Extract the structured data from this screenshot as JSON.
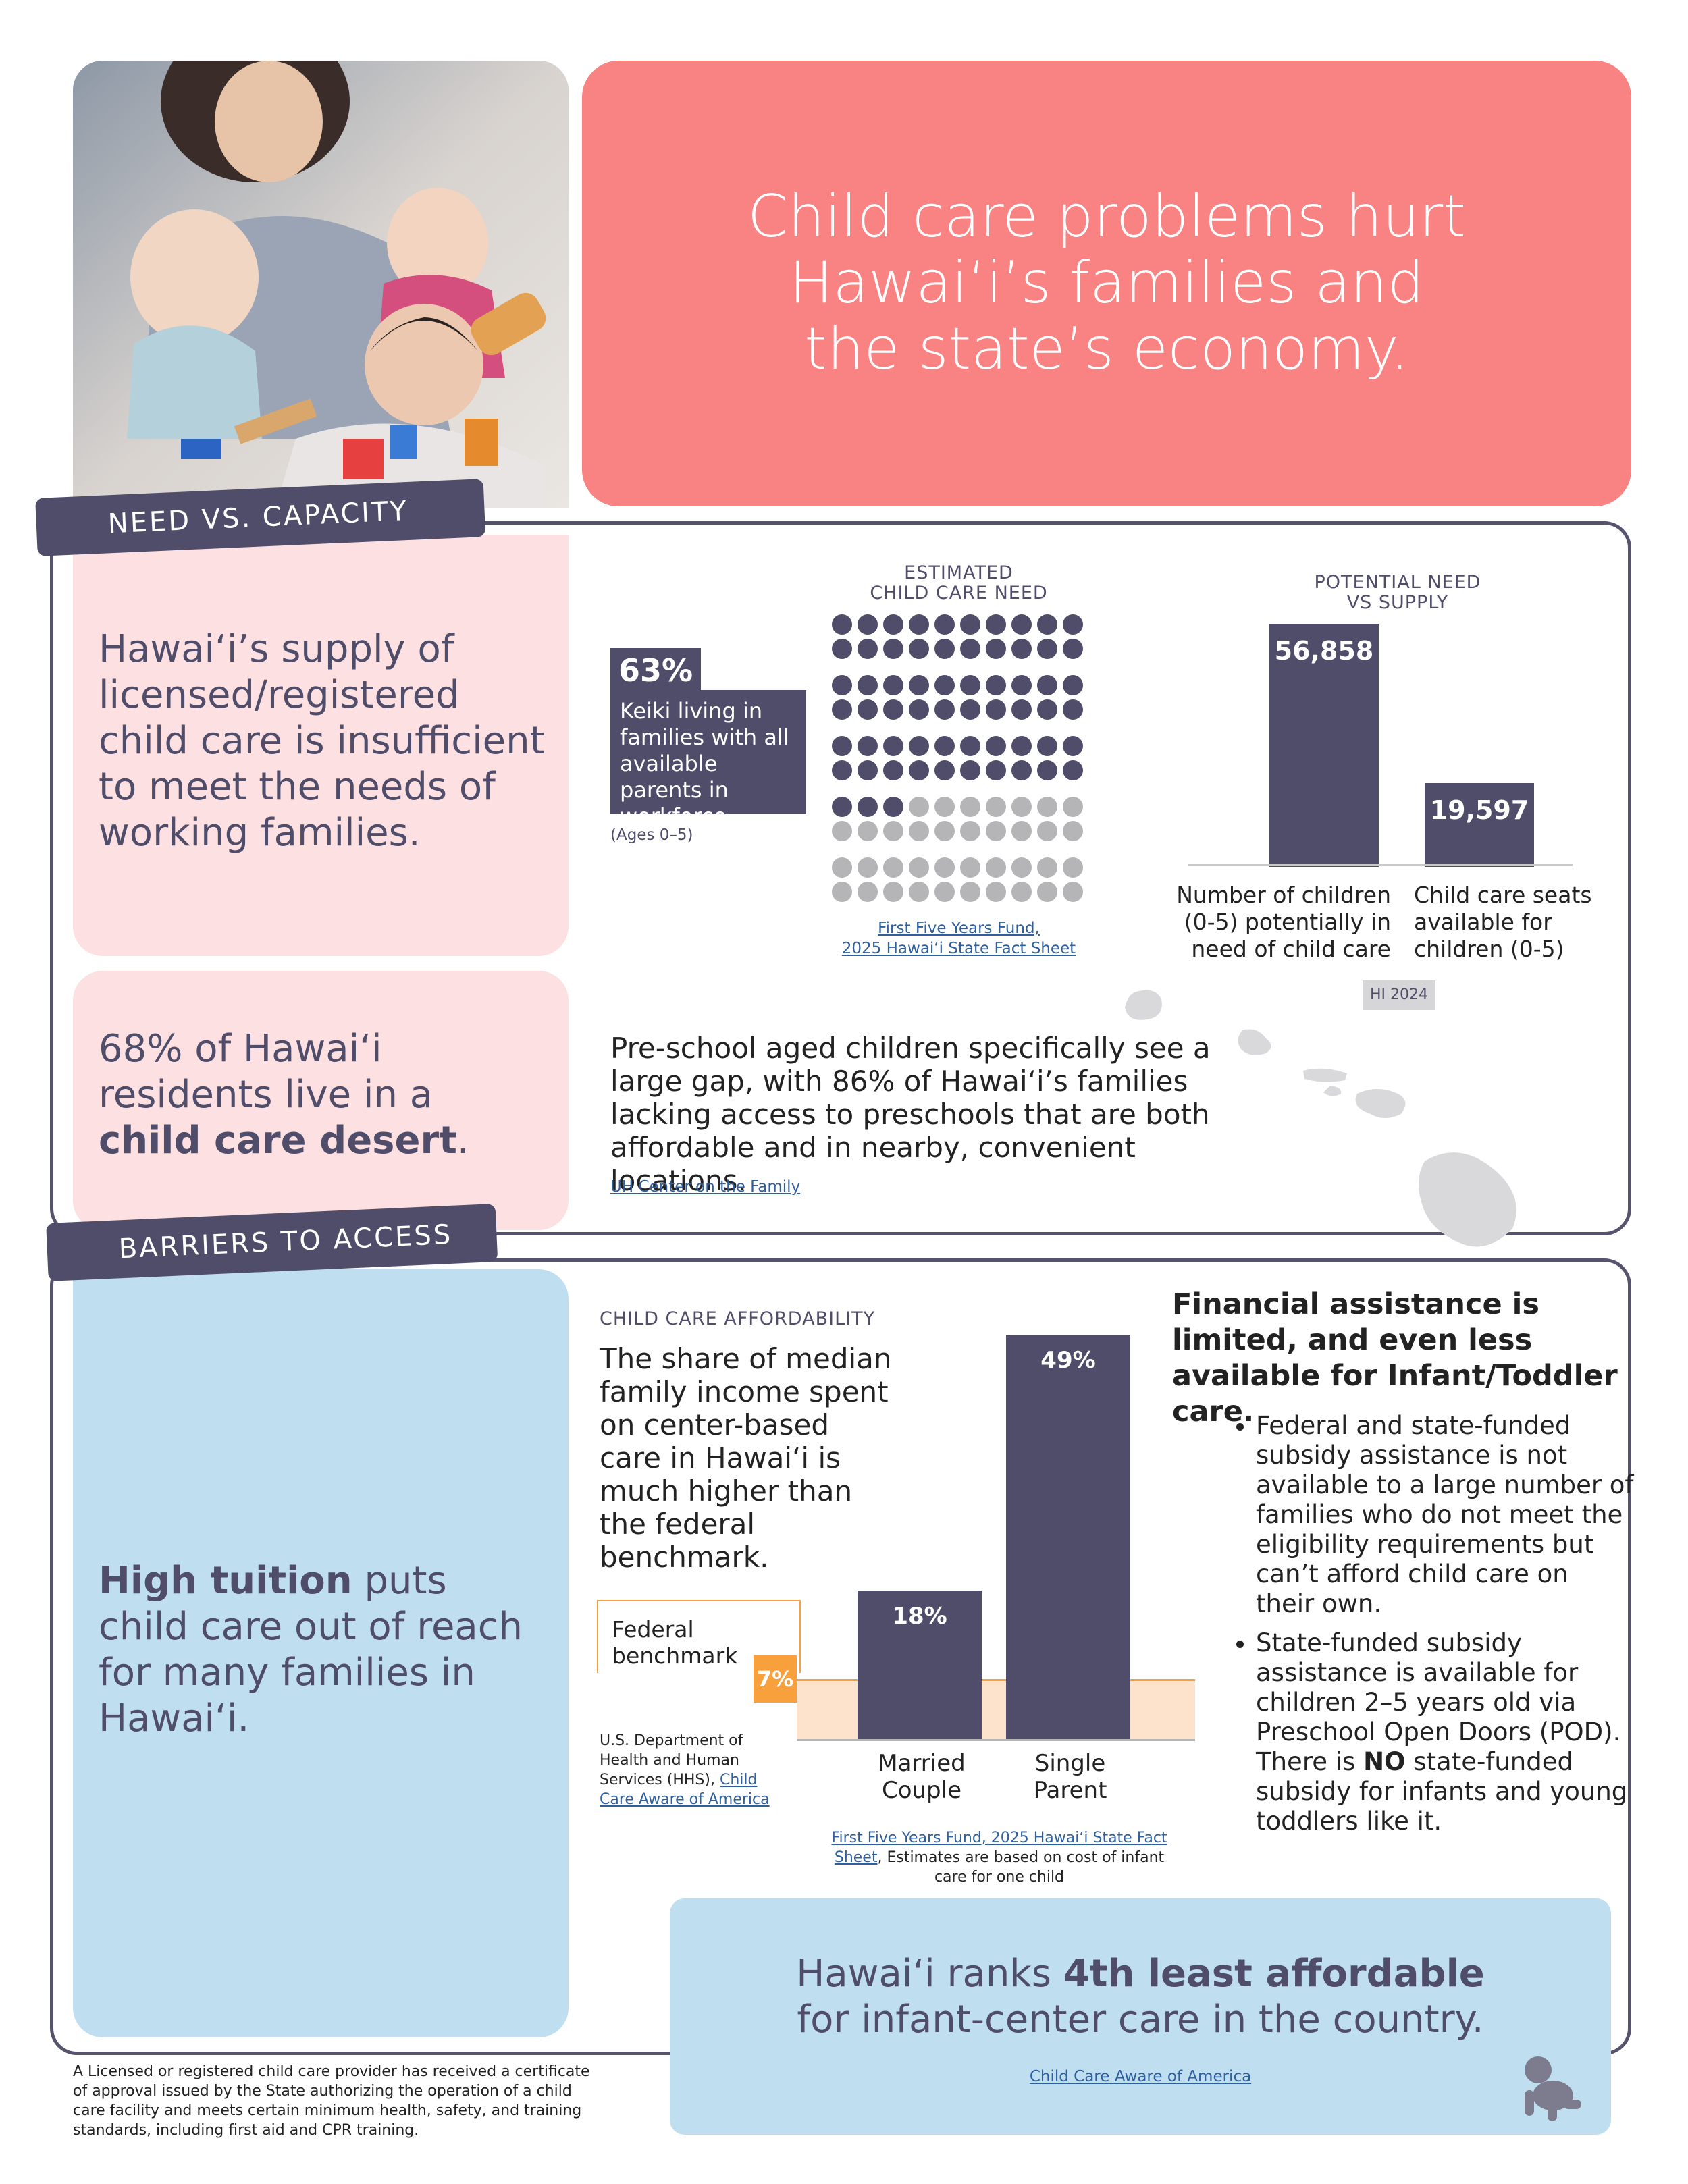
{
  "header": {
    "title_lines": [
      "Child care problems hurt",
      "Hawaiʻi’s families and",
      "the state’s economy."
    ]
  },
  "need": {
    "tab_label": "NEED VS. CAPACITY",
    "supply_statement": "Hawaiʻi’s supply of licensed/registered child care is insufficient to meet the needs of working families.",
    "stat_pct": "63%",
    "stat_desc": "Keiki living in families with all available parents in workforce",
    "stat_ages": "(Ages 0–5)",
    "dots_title_line1": "ESTIMATED",
    "dots_title_line2": "CHILD CARE NEED",
    "dots_filled": 63,
    "dots_total": 100,
    "dots_source_line1": "First Five Years Fund,",
    "dots_source_line2": "2025 Hawaiʻi State Fact Sheet",
    "supply_title_line1": "POTENTIAL NEED",
    "supply_title_line2": "VS SUPPLY",
    "year_badge": "HI 2024",
    "desert_pre": "68% of Hawaiʻi residents live in a",
    "desert_bold": "child care desert",
    "desert_post": ".",
    "preschool_text": "Pre-school aged children specifically see a large gap, with 86% of Hawaiʻi’s families lacking access to preschools that are both affordable and in nearby, convenient locations.",
    "preschool_source": "UH Center on the Family"
  },
  "barriers": {
    "tab_label": "BARRIERS TO ACCESS",
    "tuition_bold": "High tuition",
    "tuition_rest": " puts child care out of reach for many families in Hawaiʻi.",
    "afford_title": "CHILD CARE AFFORDABILITY",
    "afford_desc": "The share of median family income spent on center-based care in Hawaiʻi is much higher than the federal benchmark.",
    "benchmark_label_line1": "Federal",
    "benchmark_label_line2": "benchmark",
    "benchmark_value": "7%",
    "hhs_source_text": "U.S. Department of Health and Human Services (HHS), ",
    "hhs_source_link": "Child Care Aware of America",
    "chart_source_link": "First Five Years Fund, 2025 Hawaiʻi State Fact Sheet",
    "chart_source_note": ", Estimates are based on cost of infant care for one child",
    "fin_heading": "Financial assistance is limited, and even less available for Infant/Toddler care.",
    "bullet1": "Federal and state-funded subsidy assistance is not available to a large number of families who do not meet the eligibility requirements but can’t afford child care on their own.",
    "bullet2_pre": "State-funded subsidy assistance is available for children 2–5 years old via Preschool Open Doors (POD). There is ",
    "bullet2_bold": "NO",
    "bullet2_post": " state-funded subsidy for infants and young toddlers like it.",
    "rank_pre": "Hawaiʻi ranks ",
    "rank_bold": "4th least affordable",
    "rank_line2": "for infant-center care in the country.",
    "rank_source": "Child Care Aware of America"
  },
  "footnote": "A Licensed or registered child care provider has received a certificate of approval issued by the State authorizing the operation of a child care facility and meets certain minimum health, safety, and training standards, including first aid and CPR training.",
  "chart_data": [
    {
      "type": "bar",
      "title": "POTENTIAL NEED VS SUPPLY",
      "categories": [
        "Number of children (0-5) potentially in need of child care",
        "Child care seats available for children (0-5)"
      ],
      "values": [
        56858,
        19597
      ],
      "value_labels": [
        "56,858",
        "19,597"
      ],
      "category_lines": [
        [
          "Number of children",
          "(0-5) potentially in",
          "need of child care"
        ],
        [
          "Child care seats",
          "available for",
          "children (0-5)"
        ]
      ],
      "ylim": [
        0,
        60000
      ]
    },
    {
      "type": "bar",
      "title": "CHILD CARE AFFORDABILITY",
      "categories": [
        "Married Couple",
        "Single Parent"
      ],
      "category_lines": [
        [
          "Married",
          "Couple"
        ],
        [
          "Single",
          "Parent"
        ]
      ],
      "values": [
        18,
        49
      ],
      "value_labels": [
        "18%",
        "49%"
      ],
      "benchmark": 7,
      "ylim": [
        0,
        50
      ]
    }
  ],
  "colors": {
    "coral": "#f88382",
    "navy": "#4f4d6a",
    "pink": "#fde0e1",
    "blue": "#bfdff0",
    "orange": "#f7a03c",
    "peach": "#fde3cc",
    "gray": "#b5b4b7"
  }
}
